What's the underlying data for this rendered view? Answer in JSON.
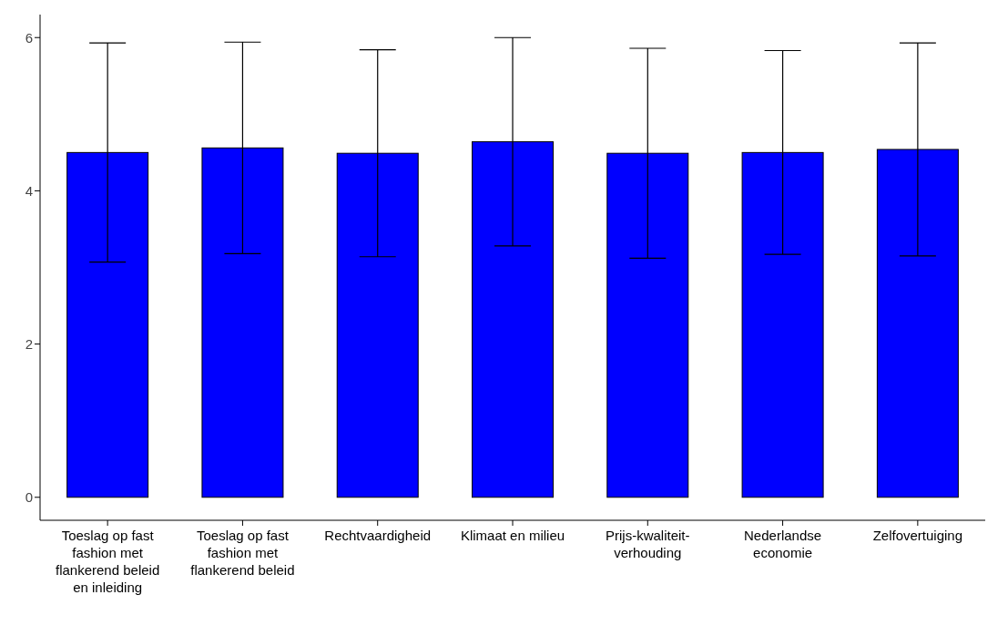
{
  "chart_data": {
    "type": "bar",
    "categories": [
      "Toeslag op fast fashion met flankerend beleid en inleiding",
      "Toeslag op fast fashion met flankerend beleid",
      "Rechtvaardigheid",
      "Klimaat en milieu",
      "Prijs-kwaliteit-verhouding",
      "Nederlandse economie",
      "Zelfovertuiging"
    ],
    "values": [
      4.5,
      4.56,
      4.49,
      4.64,
      4.49,
      4.5,
      4.54
    ],
    "errors": [
      1.43,
      1.38,
      1.35,
      1.36,
      1.37,
      1.33,
      1.39
    ],
    "color": "#0000ff",
    "ylim": [
      -0.3,
      6.3
    ],
    "yticks": [
      0,
      2,
      4,
      6
    ],
    "grid": false,
    "legend": false
  }
}
